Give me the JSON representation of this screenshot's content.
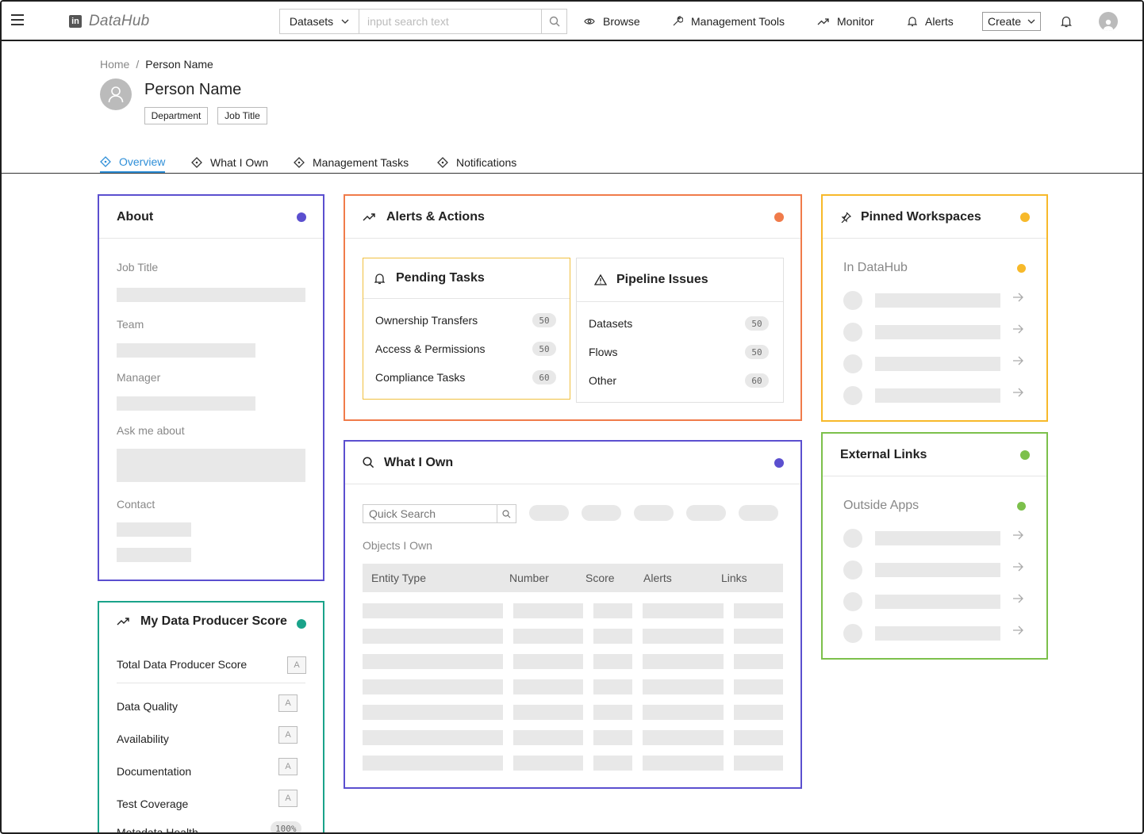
{
  "app": {
    "name": "DataHub",
    "logo_mark": "in"
  },
  "search": {
    "scope": "Datasets",
    "placeholder": "input search text"
  },
  "nav": {
    "browse": "Browse",
    "management_tools": "Management Tools",
    "monitor": "Monitor",
    "alerts": "Alerts",
    "create": "Create"
  },
  "breadcrumb": {
    "home": "Home",
    "sep": "/",
    "current": "Person Name"
  },
  "profile": {
    "name": "Person Name",
    "department": "Department",
    "job_title": "Job Title"
  },
  "tabs": [
    "Overview",
    "What I Own",
    "Management Tasks",
    "Notifications"
  ],
  "about": {
    "title": "About",
    "labels": [
      "Job Title",
      "Team",
      "Manager",
      "Ask me about",
      "Contact"
    ],
    "accent": "#5b4fcf"
  },
  "alerts_actions": {
    "title": "Alerts & Actions",
    "accent": "#f07b4a",
    "pending": {
      "title": "Pending Tasks",
      "accent": "#f0c040",
      "items": [
        {
          "label": "Ownership Transfers",
          "count": "50"
        },
        {
          "label": "Access & Permissions",
          "count": "50"
        },
        {
          "label": "Compliance Tasks",
          "count": "60"
        }
      ]
    },
    "pipeline": {
      "title": "Pipeline Issues",
      "items": [
        {
          "label": "Datasets",
          "count": "50"
        },
        {
          "label": "Flows",
          "count": "50"
        },
        {
          "label": "Other",
          "count": "60"
        }
      ]
    }
  },
  "what_i_own": {
    "title": "What I Own",
    "accent": "#5b4fcf",
    "search_placeholder": "Quick Search",
    "section": "Objects I Own",
    "columns": [
      "Entity Type",
      "Number",
      "Score",
      "Alerts",
      "Links"
    ]
  },
  "pinned": {
    "title": "Pinned Workspaces",
    "accent": "#f7b92a",
    "section": "In DataHub"
  },
  "external": {
    "title": "External Links",
    "accent": "#7cc04b",
    "section": "Outside Apps"
  },
  "producer_score": {
    "title": "My Data Producer Score",
    "accent": "#1aa38a",
    "total_label": "Total Data Producer Score",
    "total_grade": "A",
    "items": [
      {
        "label": "Data Quality",
        "grade": "A"
      },
      {
        "label": "Availability",
        "grade": "A"
      },
      {
        "label": "Documentation",
        "grade": "A"
      },
      {
        "label": "Test Coverage",
        "grade": "A"
      },
      {
        "label": "Metadata Health",
        "grade": "100%"
      }
    ]
  }
}
